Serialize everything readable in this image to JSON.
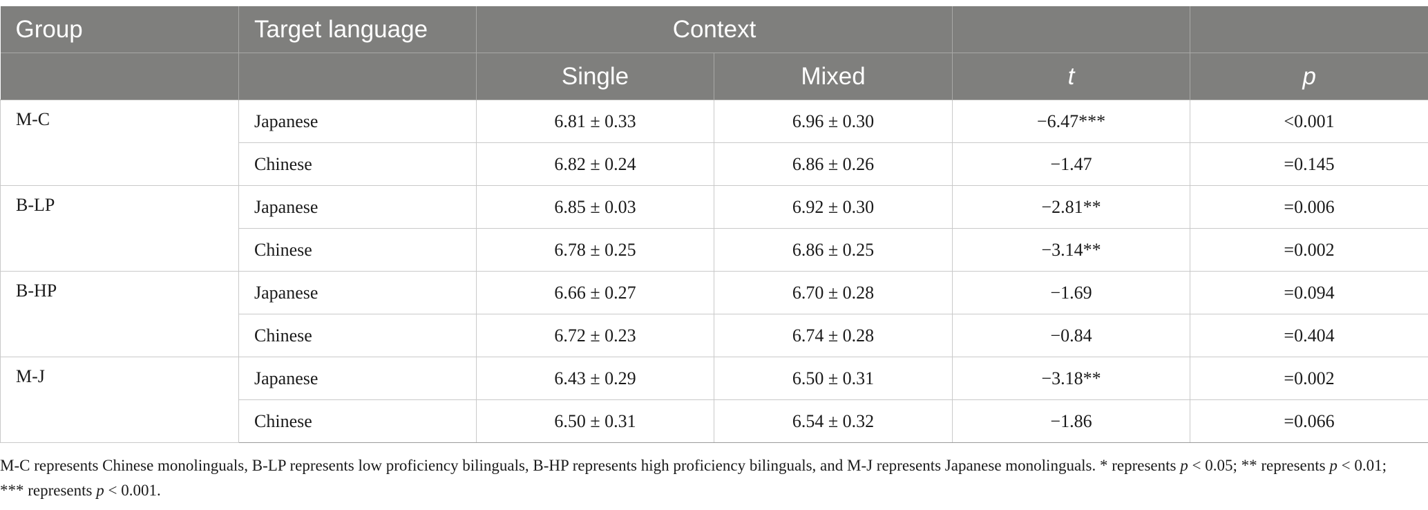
{
  "header": {
    "group": "Group",
    "target_language": "Target language",
    "context": "Context",
    "single": "Single",
    "mixed": "Mixed",
    "t": "t",
    "p": "p"
  },
  "groups": [
    {
      "name": "M-C",
      "rows": [
        {
          "language": "Japanese",
          "single": "6.81 ± 0.33",
          "mixed": "6.96 ± 0.30",
          "t": "−6.47***",
          "p": "<0.001"
        },
        {
          "language": "Chinese",
          "single": "6.82 ± 0.24",
          "mixed": "6.86 ± 0.26",
          "t": "−1.47",
          "p": "=0.145"
        }
      ]
    },
    {
      "name": "B-LP",
      "rows": [
        {
          "language": "Japanese",
          "single": "6.85 ± 0.03",
          "mixed": "6.92 ± 0.30",
          "t": "−2.81**",
          "p": "=0.006"
        },
        {
          "language": "Chinese",
          "single": "6.78 ± 0.25",
          "mixed": "6.86 ± 0.25",
          "t": "−3.14**",
          "p": "=0.002"
        }
      ]
    },
    {
      "name": "B-HP",
      "rows": [
        {
          "language": "Japanese",
          "single": "6.66 ± 0.27",
          "mixed": "6.70 ± 0.28",
          "t": "−1.69",
          "p": "=0.094"
        },
        {
          "language": "Chinese",
          "single": "6.72 ± 0.23",
          "mixed": "6.74 ± 0.28",
          "t": "−0.84",
          "p": "=0.404"
        }
      ]
    },
    {
      "name": "M-J",
      "rows": [
        {
          "language": "Japanese",
          "single": "6.43 ± 0.29",
          "mixed": "6.50 ± 0.31",
          "t": "−3.18**",
          "p": "=0.002"
        },
        {
          "language": "Chinese",
          "single": "6.50 ± 0.31",
          "mixed": "6.54 ± 0.32",
          "t": "−1.86",
          "p": "=0.066"
        }
      ]
    }
  ],
  "footnote": {
    "part1": "M-C represents Chinese monolinguals, B-LP represents low proficiency bilinguals, B-HP represents high proficiency bilinguals, and M-J represents Japanese monolinguals. * represents ",
    "p1": "p",
    "part2": " < 0.05; ** represents ",
    "p2": "p",
    "part3": " < 0.01; *** represents ",
    "p3": "p",
    "part4": " < 0.001."
  }
}
